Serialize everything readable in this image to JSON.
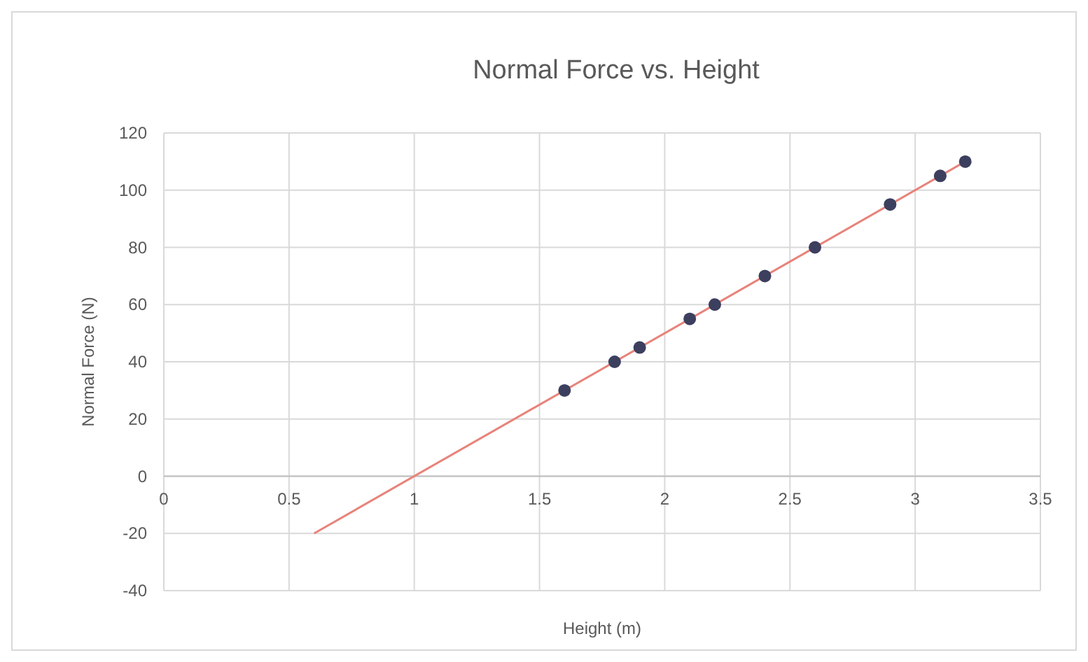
{
  "chart_data": {
    "type": "scatter",
    "title": "Normal Force vs. Height",
    "xlabel": "Height (m)",
    "ylabel": "Normal Force (N)",
    "xlim": [
      0,
      3.5
    ],
    "xticks": [
      0,
      0.5,
      1,
      1.5,
      2,
      2.5,
      3,
      3.5
    ],
    "ylim": [
      -40,
      120
    ],
    "yticks": [
      -40,
      -20,
      0,
      20,
      40,
      60,
      80,
      100,
      120
    ],
    "grid": true,
    "series": [
      {
        "color": "#3c3f5e",
        "marker": "circle",
        "x": [
          1.6,
          1.8,
          1.9,
          2.1,
          2.2,
          2.4,
          2.6,
          2.9,
          3.1,
          3.2
        ],
        "values": [
          30,
          40,
          45,
          55,
          60,
          70,
          80,
          95,
          105,
          110
        ]
      },
      {
        "type": "line",
        "color": "#e8837a",
        "marker": "none",
        "line_style": "solid",
        "x": [
          0.6,
          3.2
        ],
        "values": [
          -20,
          110
        ]
      }
    ]
  }
}
